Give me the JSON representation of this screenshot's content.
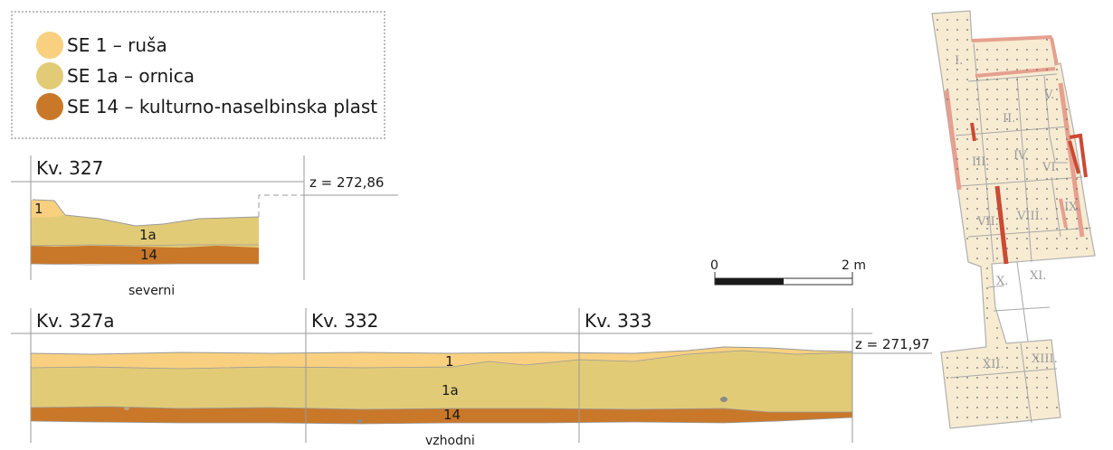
{
  "legend": {
    "items": [
      {
        "label": "SE 1 – ruša",
        "color": "#f8d07f"
      },
      {
        "label": "SE 1a – ornica",
        "color": "#e2cb77"
      },
      {
        "label": "SE 14 – kulturno-naselbinska plast",
        "color": "#c9782a"
      }
    ]
  },
  "north_section": {
    "square_label": "Kv. 327",
    "elevation": "z = 272,86",
    "caption": "severni",
    "layers": [
      "1",
      "1a",
      "14"
    ]
  },
  "east_section": {
    "squares": [
      "Kv. 327a",
      "Kv. 332",
      "Kv. 333"
    ],
    "elevation": "z = 271,97",
    "caption": "vzhodni",
    "layers": [
      "1",
      "1a",
      "14"
    ]
  },
  "scale_bar": {
    "start": "0",
    "end": "2 m"
  },
  "plan": {
    "squares": [
      "I.",
      "II.",
      "III.",
      "IV.",
      "V.",
      "VI.",
      "VII.",
      "VIII.",
      "IX.",
      "X.",
      "XI.",
      "XII.",
      "XIII."
    ]
  },
  "colors": {
    "rusa": "#f8d07f",
    "ornica": "#e2cb77",
    "kulturna_plast": "#c9782a",
    "plan_fill": "#f7ebd2",
    "plan_line": "#a8a8a8",
    "trench_red": "#cc4a33",
    "trench_light": "#e6a08f"
  }
}
